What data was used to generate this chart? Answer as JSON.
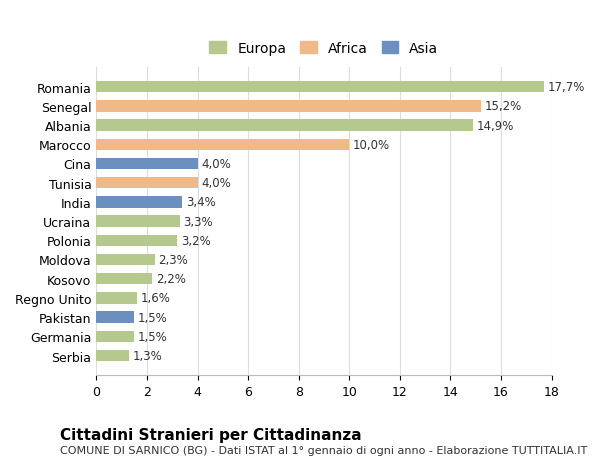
{
  "categories": [
    "Romania",
    "Senegal",
    "Albania",
    "Marocco",
    "Cina",
    "Tunisia",
    "India",
    "Ucraina",
    "Polonia",
    "Moldova",
    "Kosovo",
    "Regno Unito",
    "Pakistan",
    "Germania",
    "Serbia"
  ],
  "values": [
    17.7,
    15.2,
    14.9,
    10.0,
    4.0,
    4.0,
    3.4,
    3.3,
    3.2,
    2.3,
    2.2,
    1.6,
    1.5,
    1.5,
    1.3
  ],
  "labels": [
    "17,7%",
    "15,2%",
    "14,9%",
    "10,0%",
    "4,0%",
    "4,0%",
    "3,4%",
    "3,3%",
    "3,2%",
    "2,3%",
    "2,2%",
    "1,6%",
    "1,5%",
    "1,5%",
    "1,3%"
  ],
  "continents": [
    "Europa",
    "Africa",
    "Europa",
    "Africa",
    "Asia",
    "Africa",
    "Asia",
    "Europa",
    "Europa",
    "Europa",
    "Europa",
    "Europa",
    "Asia",
    "Europa",
    "Europa"
  ],
  "colors": {
    "Europa": "#b5c98e",
    "Africa": "#f0b98a",
    "Asia": "#6b8fbf"
  },
  "legend_labels": [
    "Europa",
    "Africa",
    "Asia"
  ],
  "legend_colors": [
    "#b5c98e",
    "#f0b98a",
    "#6b8fbf"
  ],
  "title": "Cittadini Stranieri per Cittadinanza",
  "subtitle": "COMUNE DI SARNICO (BG) - Dati ISTAT al 1° gennaio di ogni anno - Elaborazione TUTTITALIA.IT",
  "xlim": [
    0,
    18
  ],
  "xticks": [
    0,
    2,
    4,
    6,
    8,
    10,
    12,
    14,
    16,
    18
  ],
  "background_color": "#ffffff",
  "grid_color": "#dddddd",
  "bar_height": 0.6,
  "label_fontsize": 8.5,
  "tick_fontsize": 9,
  "title_fontsize": 11,
  "subtitle_fontsize": 8
}
